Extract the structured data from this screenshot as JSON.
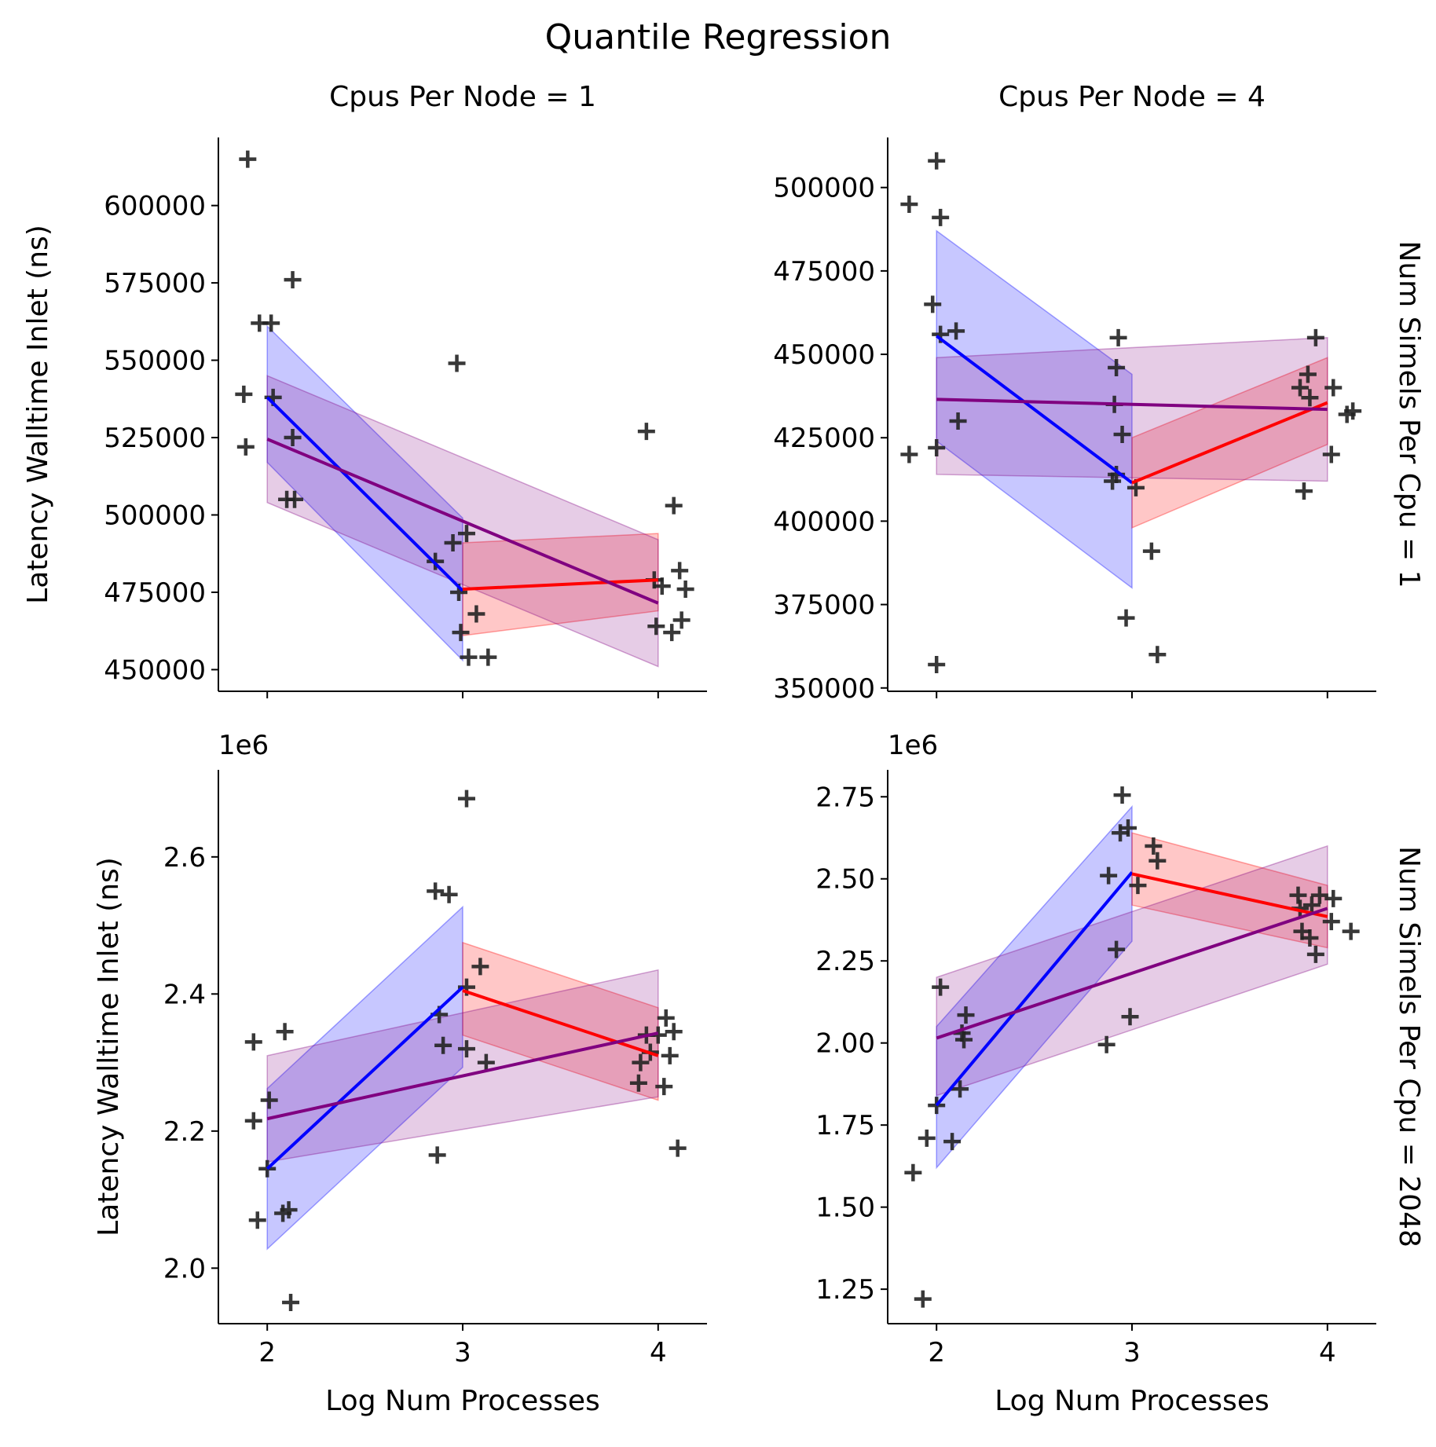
{
  "figure_title": "Quantile Regression",
  "colors": {
    "low": "#0000ff",
    "high": "#ff0000",
    "all": "#800080",
    "points": "#222222"
  },
  "chart_data": [
    {
      "type": "scatter",
      "facet_title": "Cpus Per Node = 1",
      "row_label": "",
      "xlabel": "",
      "ylabel": "Latency Walltime Inlet (ns)",
      "xlim": [
        1.75,
        4.25
      ],
      "ylim": [
        443000,
        622000
      ],
      "xticks": [
        2,
        3,
        4
      ],
      "xtick_labels": [
        "",
        "",
        ""
      ],
      "yticks": [
        450000,
        475000,
        500000,
        525000,
        550000,
        575000,
        600000
      ],
      "ytick_labels": [
        "450000",
        "475000",
        "500000",
        "525000",
        "550000",
        "575000",
        "600000"
      ],
      "offset_label": "",
      "points": [
        [
          1.9,
          615000
        ],
        [
          1.88,
          539000
        ],
        [
          1.89,
          522000
        ],
        [
          1.96,
          562000
        ],
        [
          2.02,
          562000
        ],
        [
          2.03,
          538000
        ],
        [
          2.13,
          576000
        ],
        [
          2.13,
          525000
        ],
        [
          2.1,
          505000
        ],
        [
          2.14,
          505000
        ],
        [
          2.97,
          549000
        ],
        [
          2.86,
          485000
        ],
        [
          2.95,
          491000
        ],
        [
          3.02,
          494000
        ],
        [
          2.98,
          475000
        ],
        [
          2.99,
          462000
        ],
        [
          3.03,
          454000
        ],
        [
          3.07,
          468000
        ],
        [
          3.13,
          454000
        ],
        [
          3.94,
          527000
        ],
        [
          3.98,
          479000
        ],
        [
          3.99,
          464000
        ],
        [
          4.02,
          477000
        ],
        [
          4.08,
          503000
        ],
        [
          4.11,
          482000
        ],
        [
          4.14,
          476000
        ],
        [
          4.07,
          462000
        ],
        [
          4.12,
          466000
        ]
      ],
      "series": [
        {
          "key": "low",
          "x": [
            2,
            3
          ],
          "y": [
            538000,
            475500
          ],
          "band_lo": [
            517000,
            453000
          ],
          "band_hi": [
            561000,
            499000
          ]
        },
        {
          "key": "high",
          "x": [
            3,
            4
          ],
          "y": [
            476000,
            479000
          ],
          "band_lo": [
            461000,
            469000
          ],
          "band_hi": [
            491000,
            494000
          ]
        },
        {
          "key": "all",
          "x": [
            2,
            4
          ],
          "y": [
            524500,
            471500
          ],
          "band_lo": [
            504000,
            451000
          ],
          "band_hi": [
            545000,
            492000
          ]
        }
      ]
    },
    {
      "type": "scatter",
      "facet_title": "Cpus Per Node = 4",
      "row_label": "Num Simels Per Cpu = 1",
      "xlabel": "",
      "ylabel": "",
      "xlim": [
        1.75,
        4.25
      ],
      "ylim": [
        349000,
        515000
      ],
      "xticks": [
        2,
        3,
        4
      ],
      "xtick_labels": [
        "",
        "",
        ""
      ],
      "yticks": [
        350000,
        375000,
        400000,
        425000,
        450000,
        475000,
        500000
      ],
      "ytick_labels": [
        "350000",
        "375000",
        "400000",
        "425000",
        "450000",
        "475000",
        "500000"
      ],
      "offset_label": "",
      "points": [
        [
          1.86,
          495000
        ],
        [
          1.86,
          420000
        ],
        [
          2.0,
          508000
        ],
        [
          2.02,
          491000
        ],
        [
          1.98,
          465000
        ],
        [
          2.02,
          456000
        ],
        [
          2.1,
          457000
        ],
        [
          2.0,
          422000
        ],
        [
          2.11,
          430000
        ],
        [
          2.0,
          357000
        ],
        [
          2.93,
          455000
        ],
        [
          2.92,
          446000
        ],
        [
          2.91,
          435000
        ],
        [
          2.95,
          426000
        ],
        [
          2.9,
          412000
        ],
        [
          2.92,
          414000
        ],
        [
          3.02,
          410000
        ],
        [
          2.97,
          371000
        ],
        [
          3.1,
          391000
        ],
        [
          3.13,
          360000
        ],
        [
          3.94,
          455000
        ],
        [
          3.86,
          440000
        ],
        [
          3.9,
          444000
        ],
        [
          3.91,
          437000
        ],
        [
          4.03,
          440000
        ],
        [
          4.02,
          420000
        ],
        [
          3.88,
          409000
        ],
        [
          4.1,
          432000
        ],
        [
          4.13,
          433000
        ]
      ],
      "series": [
        {
          "key": "low",
          "x": [
            2,
            3
          ],
          "y": [
            455500,
            411500
          ],
          "band_lo": [
            424000,
            380000
          ],
          "band_hi": [
            487000,
            444000
          ]
        },
        {
          "key": "high",
          "x": [
            3,
            4
          ],
          "y": [
            411500,
            435500
          ],
          "band_lo": [
            398000,
            423000
          ],
          "band_hi": [
            425000,
            449000
          ]
        },
        {
          "key": "all",
          "x": [
            2,
            4
          ],
          "y": [
            436500,
            433500
          ],
          "band_lo": [
            414000,
            412000
          ],
          "band_hi": [
            449000,
            455000
          ]
        }
      ]
    },
    {
      "type": "scatter",
      "facet_title": "",
      "row_label": "",
      "xlabel": "Log Num Processes",
      "ylabel": "Latency Walltime Inlet (ns)",
      "xlim": [
        1.75,
        4.25
      ],
      "ylim": [
        1.919,
        2.727
      ],
      "xticks": [
        2,
        3,
        4
      ],
      "xtick_labels": [
        "2",
        "3",
        "4"
      ],
      "yticks": [
        2.0,
        2.2,
        2.4,
        2.6
      ],
      "ytick_labels": [
        "2.0",
        "2.2",
        "2.4",
        "2.6"
      ],
      "offset_label": "1e6",
      "points": [
        [
          1.93,
          2.33
        ],
        [
          1.93,
          2.215
        ],
        [
          1.95,
          2.07
        ],
        [
          2.01,
          2.245
        ],
        [
          2.0,
          2.145
        ],
        [
          2.09,
          2.345
        ],
        [
          2.08,
          2.08
        ],
        [
          2.11,
          2.085
        ],
        [
          2.12,
          1.95
        ],
        [
          2.86,
          2.55
        ],
        [
          2.93,
          2.545
        ],
        [
          2.88,
          2.37
        ],
        [
          2.9,
          2.325
        ],
        [
          3.02,
          2.685
        ],
        [
          3.02,
          2.41
        ],
        [
          3.02,
          2.32
        ],
        [
          3.09,
          2.44
        ],
        [
          3.12,
          2.3
        ],
        [
          2.87,
          2.165
        ],
        [
          3.9,
          2.27
        ],
        [
          3.91,
          2.3
        ],
        [
          3.94,
          2.34
        ],
        [
          3.96,
          2.315
        ],
        [
          4.0,
          2.34
        ],
        [
          4.04,
          2.365
        ],
        [
          4.08,
          2.345
        ],
        [
          4.06,
          2.31
        ],
        [
          4.03,
          2.265
        ],
        [
          4.1,
          2.175
        ]
      ],
      "series": [
        {
          "key": "low",
          "x": [
            2,
            3
          ],
          "y": [
            2.145,
            2.41
          ],
          "band_lo": [
            2.028,
            2.293
          ],
          "band_hi": [
            2.262,
            2.527
          ]
        },
        {
          "key": "high",
          "x": [
            3,
            4
          ],
          "y": [
            2.405,
            2.31
          ],
          "band_lo": [
            2.34,
            2.245
          ],
          "band_hi": [
            2.475,
            2.38
          ]
        },
        {
          "key": "all",
          "x": [
            2,
            4
          ],
          "y": [
            2.218,
            2.343
          ],
          "band_lo": [
            2.155,
            2.25
          ],
          "band_hi": [
            2.31,
            2.435
          ]
        }
      ]
    },
    {
      "type": "scatter",
      "facet_title": "",
      "row_label": "Num Simels Per Cpu = 2048",
      "xlabel": "Log Num Processes",
      "ylabel": "",
      "xlim": [
        1.75,
        4.25
      ],
      "ylim": [
        1.145,
        2.832
      ],
      "xticks": [
        2,
        3,
        4
      ],
      "xtick_labels": [
        "2",
        "3",
        "4"
      ],
      "yticks": [
        1.25,
        1.5,
        1.75,
        2.0,
        2.25,
        2.5,
        2.75
      ],
      "ytick_labels": [
        "1.25",
        "1.50",
        "1.75",
        "2.00",
        "2.25",
        "2.50",
        "2.75"
      ],
      "offset_label": "1e6",
      "points": [
        [
          1.88,
          1.605
        ],
        [
          1.93,
          1.22
        ],
        [
          1.95,
          1.71
        ],
        [
          2.02,
          2.17
        ],
        [
          2.0,
          1.81
        ],
        [
          2.08,
          1.7
        ],
        [
          2.13,
          2.03
        ],
        [
          2.15,
          2.085
        ],
        [
          2.14,
          2.01
        ],
        [
          2.12,
          1.86
        ],
        [
          2.95,
          2.755
        ],
        [
          2.94,
          2.64
        ],
        [
          2.98,
          2.655
        ],
        [
          2.88,
          2.51
        ],
        [
          2.92,
          2.285
        ],
        [
          3.03,
          2.48
        ],
        [
          2.87,
          1.995
        ],
        [
          2.99,
          2.08
        ],
        [
          3.11,
          2.6
        ],
        [
          3.13,
          2.555
        ],
        [
          3.85,
          2.45
        ],
        [
          3.86,
          2.41
        ],
        [
          3.87,
          2.34
        ],
        [
          3.91,
          2.32
        ],
        [
          3.92,
          2.42
        ],
        [
          3.96,
          2.45
        ],
        [
          3.94,
          2.27
        ],
        [
          4.02,
          2.37
        ],
        [
          4.03,
          2.44
        ],
        [
          4.12,
          2.34
        ]
      ],
      "series": [
        {
          "key": "low",
          "x": [
            2,
            3
          ],
          "y": [
            1.81,
            2.52
          ],
          "band_lo": [
            1.62,
            2.31
          ],
          "band_hi": [
            2.05,
            2.72
          ]
        },
        {
          "key": "high",
          "x": [
            3,
            4
          ],
          "y": [
            2.515,
            2.385
          ],
          "band_lo": [
            2.42,
            2.29
          ],
          "band_hi": [
            2.64,
            2.48
          ]
        },
        {
          "key": "all",
          "x": [
            2,
            4
          ],
          "y": [
            2.015,
            2.41
          ],
          "band_lo": [
            1.84,
            2.24
          ],
          "band_hi": [
            2.2,
            2.6
          ]
        }
      ]
    }
  ]
}
